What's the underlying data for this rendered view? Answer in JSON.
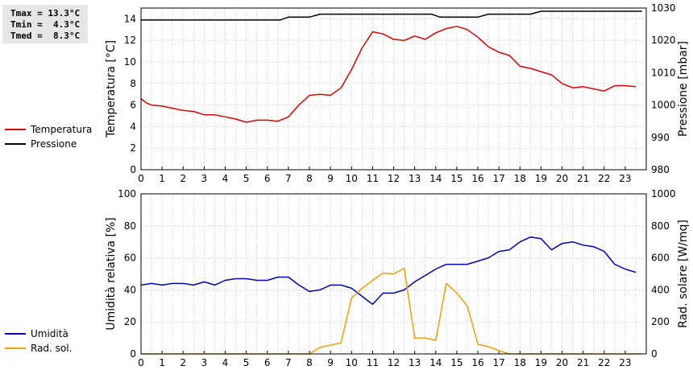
{
  "stats": {
    "tmax": "Tmax = 13.3°C",
    "tmin": "Tmin =  4.3°C",
    "tmed": "Tmed =  8.3°C"
  },
  "chart_data": [
    {
      "type": "line",
      "ylabel": "Temperatura [°C]",
      "y2label": "Pressione [mbar]",
      "xlim": [
        0,
        24
      ],
      "ylim": [
        0,
        15
      ],
      "y2lim": [
        980,
        1030
      ],
      "x_ticks": [
        0,
        1,
        2,
        3,
        4,
        5,
        6,
        7,
        8,
        9,
        10,
        11,
        12,
        13,
        14,
        15,
        16,
        17,
        18,
        19,
        20,
        21,
        22,
        23
      ],
      "y_ticks": [
        0,
        2,
        4,
        6,
        8,
        10,
        12,
        14
      ],
      "y2_ticks": [
        980,
        990,
        1000,
        1010,
        1020,
        1030
      ],
      "grid": true,
      "legend_position": "left",
      "series": [
        {
          "name": "Temperatura",
          "axis": "left",
          "color": "#dd0000",
          "x": [
            0,
            0.25,
            0.5,
            1,
            1.5,
            2,
            2.5,
            3,
            3.5,
            4,
            4.5,
            5,
            5.5,
            6,
            6.5,
            7,
            7.5,
            8,
            8.5,
            9,
            9.5,
            10,
            10.5,
            11,
            11.5,
            12,
            12.5,
            13,
            13.5,
            14,
            14.5,
            15,
            15.5,
            16,
            16.5,
            17,
            17.5,
            18,
            18.5,
            19,
            19.5,
            20,
            20.5,
            21,
            21.5,
            22,
            22.5,
            23,
            23.5
          ],
          "values": [
            6.6,
            6.2,
            6.0,
            5.9,
            5.7,
            5.5,
            5.4,
            5.1,
            5.1,
            4.9,
            4.7,
            4.4,
            4.6,
            4.6,
            4.5,
            4.9,
            6.0,
            6.9,
            7.0,
            6.9,
            7.6,
            9.3,
            11.3,
            12.8,
            12.6,
            12.1,
            12.0,
            12.4,
            12.1,
            12.7,
            13.1,
            13.3,
            13.0,
            12.3,
            11.4,
            10.9,
            10.6,
            9.6,
            9.4,
            9.1,
            8.8,
            8.0,
            7.6,
            7.7,
            7.5,
            7.3,
            7.8,
            7.8,
            7.7
          ]
        },
        {
          "name": "Pressione",
          "axis": "right",
          "color": "#000000",
          "x": [
            0,
            6.6,
            7,
            8,
            8.5,
            13.8,
            14.2,
            16,
            16.5,
            18.5,
            19,
            23.8
          ],
          "values": [
            1026.3,
            1026.3,
            1027.2,
            1027.2,
            1028.1,
            1028.1,
            1027.2,
            1027.2,
            1028.1,
            1028.1,
            1029.0,
            1029.0
          ]
        }
      ]
    },
    {
      "type": "line",
      "ylabel": "Umidità relativa [%]",
      "y2label": "Rad. solare [W/mq]",
      "xlim": [
        0,
        24
      ],
      "ylim": [
        0,
        100
      ],
      "y2lim": [
        0,
        1000
      ],
      "x_ticks": [
        0,
        1,
        2,
        3,
        4,
        5,
        6,
        7,
        8,
        9,
        10,
        11,
        12,
        13,
        14,
        15,
        16,
        17,
        18,
        19,
        20,
        21,
        22,
        23
      ],
      "y_ticks": [
        0,
        20,
        40,
        60,
        80,
        100
      ],
      "y2_ticks": [
        0,
        200,
        400,
        600,
        800,
        1000
      ],
      "grid": true,
      "legend_position": "left",
      "series": [
        {
          "name": "Umidità",
          "axis": "left",
          "color": "#0000bb",
          "x": [
            0,
            0.5,
            1,
            1.5,
            2,
            2.5,
            3,
            3.5,
            4,
            4.5,
            5,
            5.5,
            6,
            6.5,
            7,
            7.5,
            8,
            8.5,
            9,
            9.5,
            10,
            10.5,
            11,
            11.5,
            12,
            12.5,
            13,
            13.5,
            14,
            14.5,
            15,
            15.5,
            16,
            16.5,
            17,
            17.5,
            18,
            18.5,
            19,
            19.5,
            20,
            20.5,
            21,
            21.5,
            22,
            22.5,
            23,
            23.5
          ],
          "values": [
            43,
            44,
            43,
            44,
            44,
            43,
            45,
            43,
            46,
            47,
            47,
            46,
            46,
            48,
            48,
            43,
            39,
            40,
            43,
            43,
            41,
            36,
            31,
            38,
            38,
            40,
            45,
            49,
            53,
            56,
            56,
            56,
            58,
            60,
            64,
            65,
            70,
            73,
            72,
            65,
            69,
            70,
            68,
            67,
            64,
            56,
            53,
            51
          ]
        },
        {
          "name": "Rad. sol.",
          "axis": "right",
          "color": "#f0a000",
          "x": [
            0,
            8,
            8.5,
            9,
            9.5,
            10,
            10.5,
            11,
            11.5,
            12,
            12.5,
            13,
            13.5,
            14,
            14.5,
            15,
            15.5,
            16,
            16.5,
            17,
            17.5,
            18,
            23.8
          ],
          "values": [
            0,
            0,
            40,
            55,
            70,
            350,
            410,
            460,
            505,
            500,
            535,
            100,
            100,
            85,
            440,
            380,
            300,
            60,
            45,
            20,
            0,
            0,
            0
          ]
        }
      ]
    }
  ]
}
